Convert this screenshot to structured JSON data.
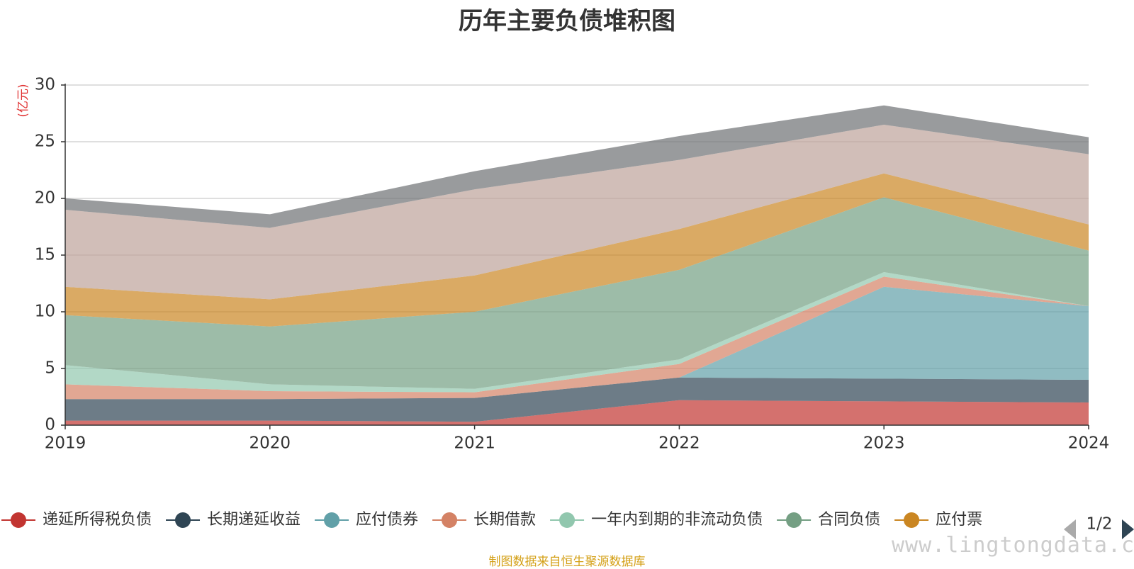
{
  "chart_data": {
    "type": "area",
    "stacked": true,
    "title": "历年主要负债堆积图",
    "unit_label": "(亿元)",
    "x": [
      "2019",
      "2020",
      "2021",
      "2022",
      "2023",
      "2024"
    ],
    "ylim": [
      0,
      30
    ],
    "yticks": [
      0,
      5,
      10,
      15,
      20,
      25,
      30
    ],
    "grid": true,
    "series": [
      {
        "name": "递延所得税负债",
        "color": "#c23531",
        "values": [
          0.4,
          0.4,
          0.3,
          2.2,
          2.1,
          2.0
        ]
      },
      {
        "name": "长期递延收益",
        "color": "#2f4554",
        "values": [
          1.9,
          1.9,
          2.1,
          2.0,
          2.0,
          2.0
        ]
      },
      {
        "name": "应付债券",
        "color": "#61a0a8",
        "values": [
          0,
          0,
          0,
          0,
          8.1,
          6.5
        ]
      },
      {
        "name": "长期借款",
        "color": "#d48265",
        "values": [
          1.3,
          0.7,
          0.5,
          1.2,
          0.9,
          0
        ]
      },
      {
        "name": "一年内到期的非流动负债",
        "color": "#91c7ae",
        "values": [
          1.7,
          0.6,
          0.3,
          0.4,
          0.4,
          0
        ]
      },
      {
        "name": "合同负债",
        "color": "#749f83",
        "values": [
          4.4,
          5.1,
          6.8,
          7.9,
          6.6,
          4.9
        ]
      },
      {
        "name": "应付票",
        "color": "#ca8622",
        "values": [
          2.5,
          2.4,
          3.2,
          3.6,
          2.1,
          2.3
        ]
      },
      {
        "name": "",
        "color": "#bda29a",
        "values": [
          6.8,
          6.3,
          7.6,
          6.1,
          4.3,
          6.2
        ]
      },
      {
        "name": "",
        "color": "#6e7074",
        "values": [
          1.0,
          1.2,
          1.6,
          2.1,
          1.7,
          1.5
        ]
      }
    ],
    "legend": {
      "placement": "bottom",
      "page": "1/2"
    }
  },
  "source_note": "制图数据来自恒生聚源数据库",
  "watermark": "www.lingtongdata.com"
}
